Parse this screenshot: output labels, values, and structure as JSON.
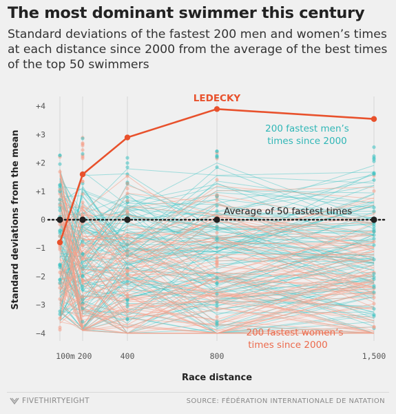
{
  "header": {
    "title": "The most dominant swimmer this century",
    "subtitle": "Standard deviations of the fastest 200 men and women’s times at each distance since 2000 from the average of the best times of the top 50 swimmers"
  },
  "footer": {
    "logo_text": "FIVETHIRTYEIGHT",
    "source": "SOURCE:  FÉDÉRATION INTERNATIONALE DE NATATION"
  },
  "colors": {
    "ledecky": "#e8512c",
    "men": "#3cc3c3",
    "women": "#f6a08a",
    "mean": "#222222",
    "background": "#f0f0f0"
  },
  "chart_data": {
    "type": "line",
    "xlabel": "Race distance",
    "ylabel": "Standard deviations from the mean",
    "x": [
      100,
      200,
      400,
      800,
      1500
    ],
    "x_tick_labels": [
      "100m",
      "200",
      "400",
      "800",
      "1,500"
    ],
    "ylim": [
      -4.2,
      4.4
    ],
    "y_ticks": [
      4,
      3,
      2,
      1,
      0,
      -1,
      -2,
      -3,
      -4
    ],
    "y_tick_labels": [
      "+4",
      "+3",
      "+2",
      "+1",
      "0",
      "−1",
      "−2",
      "−3",
      "−4"
    ],
    "grid": "vertical",
    "series": [
      {
        "name": "LEDECKY",
        "values": [
          -0.8,
          1.6,
          2.9,
          3.9,
          3.55
        ]
      },
      {
        "name": "Average of 50 fastest times",
        "values": [
          0,
          0,
          0,
          0,
          0
        ]
      }
    ],
    "annotations": {
      "men": [
        "200 fastest men’s",
        "times since 2000"
      ],
      "women": [
        "200 fastest women’s",
        "times since 2000"
      ],
      "mean": "Average of 50 fastest times"
    }
  }
}
